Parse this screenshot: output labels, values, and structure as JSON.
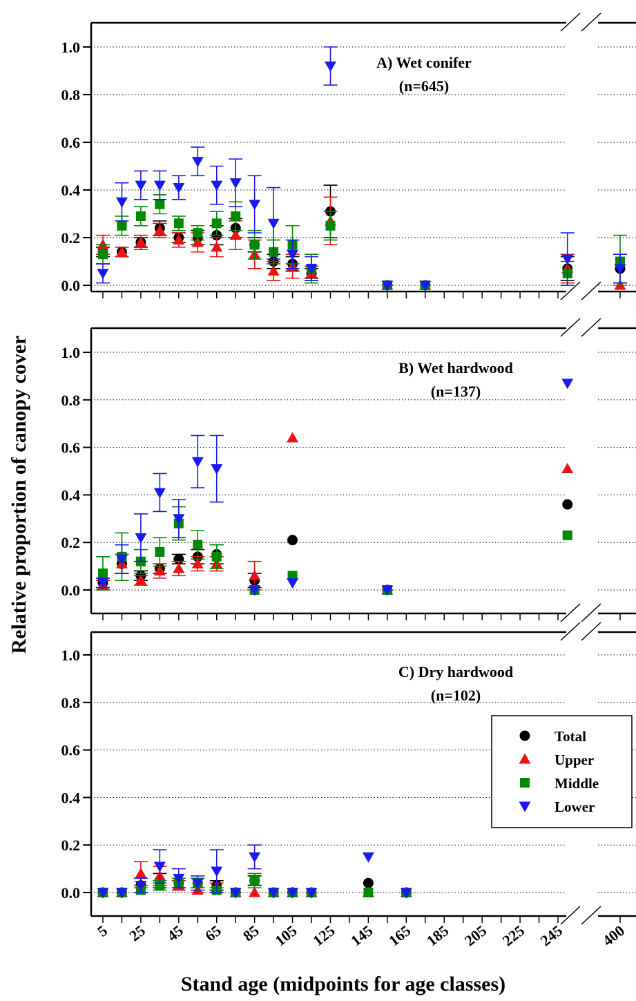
{
  "figure": {
    "ylabel": "Relative proportion of canopy cover",
    "xlabel": "Stand age (midpoints for age classes)",
    "x_ticks": [
      "5",
      "25",
      "45",
      "65",
      "85",
      "105",
      "125",
      "145",
      "165",
      "185",
      "205",
      "225",
      "245",
      "400"
    ],
    "y_ticks": [
      "0.0",
      "0.2",
      "0.4",
      "0.6",
      "0.8",
      "1.0"
    ],
    "legend": [
      {
        "label": "Total",
        "color": "#000000",
        "marker": "circle"
      },
      {
        "label": "Upper",
        "color": "#ee1111",
        "marker": "triangle-up"
      },
      {
        "label": "Middle",
        "color": "#008800",
        "marker": "square"
      },
      {
        "label": "Lower",
        "color": "#1a1aee",
        "marker": "triangle-down"
      }
    ]
  },
  "chart_data": [
    {
      "type": "scatter",
      "title": "A) Wet conifer",
      "subtitle": "(n=645)",
      "ylim": [
        -0.08,
        1.1
      ],
      "grid": "horizontal dotted",
      "x_axis_break": "between 245 and 400",
      "series": [
        {
          "name": "Total",
          "points": [
            {
              "x": 5,
              "y": 0.14,
              "err": 0.02
            },
            {
              "x": 15,
              "y": 0.14,
              "err": 0.02
            },
            {
              "x": 25,
              "y": 0.18,
              "err": 0.02
            },
            {
              "x": 35,
              "y": 0.24,
              "err": 0.03
            },
            {
              "x": 45,
              "y": 0.2,
              "err": 0.02
            },
            {
              "x": 55,
              "y": 0.2,
              "err": 0.03
            },
            {
              "x": 65,
              "y": 0.21,
              "err": 0.04
            },
            {
              "x": 75,
              "y": 0.24,
              "err": 0.04
            },
            {
              "x": 85,
              "y": 0.17,
              "err": 0.03
            },
            {
              "x": 95,
              "y": 0.1,
              "err": 0.03
            },
            {
              "x": 105,
              "y": 0.09,
              "err": 0.03
            },
            {
              "x": 115,
              "y": 0.05,
              "err": 0.02
            },
            {
              "x": 125,
              "y": 0.31,
              "err": 0.11
            },
            {
              "x": 155,
              "y": 0.0,
              "err": 0
            },
            {
              "x": 175,
              "y": 0.0,
              "err": 0
            },
            {
              "x": 250,
              "y": 0.07,
              "err": 0.05
            },
            {
              "x": 400,
              "y": 0.07,
              "err": 0.06
            }
          ]
        },
        {
          "name": "Upper",
          "points": [
            {
              "x": 5,
              "y": 0.17,
              "err": 0.04
            },
            {
              "x": 15,
              "y": 0.14,
              "err": 0.02
            },
            {
              "x": 25,
              "y": 0.18,
              "err": 0.03
            },
            {
              "x": 35,
              "y": 0.23,
              "err": 0.03
            },
            {
              "x": 45,
              "y": 0.19,
              "err": 0.03
            },
            {
              "x": 55,
              "y": 0.18,
              "err": 0.04
            },
            {
              "x": 65,
              "y": 0.16,
              "err": 0.04
            },
            {
              "x": 75,
              "y": 0.21,
              "err": 0.06
            },
            {
              "x": 85,
              "y": 0.13,
              "err": 0.06
            },
            {
              "x": 95,
              "y": 0.06,
              "err": 0.04
            },
            {
              "x": 105,
              "y": 0.08,
              "err": 0.05
            },
            {
              "x": 115,
              "y": 0.05,
              "err": 0.03
            },
            {
              "x": 125,
              "y": 0.27,
              "err": 0.1
            },
            {
              "x": 155,
              "y": 0.0,
              "err": 0
            },
            {
              "x": 175,
              "y": 0.0,
              "err": 0
            },
            {
              "x": 250,
              "y": 0.07,
              "err": 0.06
            },
            {
              "x": 400,
              "y": 0.0,
              "err": 0
            }
          ]
        },
        {
          "name": "Middle",
          "points": [
            {
              "x": 5,
              "y": 0.13,
              "err": 0.04
            },
            {
              "x": 15,
              "y": 0.25,
              "err": 0.04
            },
            {
              "x": 25,
              "y": 0.29,
              "err": 0.04
            },
            {
              "x": 35,
              "y": 0.34,
              "err": 0.04
            },
            {
              "x": 45,
              "y": 0.26,
              "err": 0.03
            },
            {
              "x": 55,
              "y": 0.22,
              "err": 0.03
            },
            {
              "x": 65,
              "y": 0.26,
              "err": 0.05
            },
            {
              "x": 75,
              "y": 0.29,
              "err": 0.06
            },
            {
              "x": 85,
              "y": 0.17,
              "err": 0.06
            },
            {
              "x": 95,
              "y": 0.14,
              "err": 0.05
            },
            {
              "x": 105,
              "y": 0.17,
              "err": 0.08
            },
            {
              "x": 115,
              "y": 0.07,
              "err": 0.06
            },
            {
              "x": 125,
              "y": 0.25,
              "err": 0.06
            },
            {
              "x": 155,
              "y": 0.0,
              "err": 0
            },
            {
              "x": 175,
              "y": 0.0,
              "err": 0
            },
            {
              "x": 250,
              "y": 0.05,
              "err": 0.05
            },
            {
              "x": 400,
              "y": 0.1,
              "err": 0.11
            }
          ]
        },
        {
          "name": "Lower",
          "points": [
            {
              "x": 5,
              "y": 0.05,
              "err": 0.04
            },
            {
              "x": 15,
              "y": 0.35,
              "err": 0.08
            },
            {
              "x": 25,
              "y": 0.42,
              "err": 0.06
            },
            {
              "x": 35,
              "y": 0.42,
              "err": 0.06
            },
            {
              "x": 45,
              "y": 0.41,
              "err": 0.05
            },
            {
              "x": 55,
              "y": 0.52,
              "err": 0.06
            },
            {
              "x": 65,
              "y": 0.42,
              "err": 0.08
            },
            {
              "x": 75,
              "y": 0.43,
              "err": 0.1
            },
            {
              "x": 85,
              "y": 0.34,
              "err": 0.12
            },
            {
              "x": 95,
              "y": 0.26,
              "err": 0.15
            },
            {
              "x": 105,
              "y": 0.13,
              "err": 0.06
            },
            {
              "x": 115,
              "y": 0.07,
              "err": 0.05
            },
            {
              "x": 125,
              "y": 0.92,
              "err": 0.08
            },
            {
              "x": 155,
              "y": 0.0,
              "err": 0
            },
            {
              "x": 175,
              "y": 0.0,
              "err": 0
            },
            {
              "x": 250,
              "y": 0.11,
              "err": 0.11
            },
            {
              "x": 400,
              "y": 0.07,
              "err": 0.06
            }
          ]
        }
      ]
    },
    {
      "type": "scatter",
      "title": "B) Wet hardwood",
      "subtitle": "(n=137)",
      "ylim": [
        -0.08,
        1.1
      ],
      "grid": "horizontal dotted",
      "x_axis_break": "between 245 and 400",
      "series": [
        {
          "name": "Total",
          "points": [
            {
              "x": 5,
              "y": 0.03,
              "err": 0.02
            },
            {
              "x": 15,
              "y": 0.11,
              "err": 0.04
            },
            {
              "x": 25,
              "y": 0.06,
              "err": 0.02
            },
            {
              "x": 35,
              "y": 0.09,
              "err": 0.02
            },
            {
              "x": 45,
              "y": 0.13,
              "err": 0.02
            },
            {
              "x": 55,
              "y": 0.14,
              "err": 0.03
            },
            {
              "x": 65,
              "y": 0.15,
              "err": 0.04
            },
            {
              "x": 85,
              "y": 0.04,
              "err": 0.03
            },
            {
              "x": 105,
              "y": 0.21,
              "err": 0
            },
            {
              "x": 155,
              "y": 0.0,
              "err": 0
            },
            {
              "x": 250,
              "y": 0.36,
              "err": 0
            }
          ]
        },
        {
          "name": "Upper",
          "points": [
            {
              "x": 5,
              "y": 0.02,
              "err": 0.02
            },
            {
              "x": 15,
              "y": 0.11,
              "err": 0.04
            },
            {
              "x": 25,
              "y": 0.04,
              "err": 0.02
            },
            {
              "x": 35,
              "y": 0.08,
              "err": 0.03
            },
            {
              "x": 45,
              "y": 0.09,
              "err": 0.03
            },
            {
              "x": 55,
              "y": 0.11,
              "err": 0.03
            },
            {
              "x": 65,
              "y": 0.11,
              "err": 0.03
            },
            {
              "x": 85,
              "y": 0.06,
              "err": 0.06
            },
            {
              "x": 105,
              "y": 0.64,
              "err": 0
            },
            {
              "x": 155,
              "y": 0.0,
              "err": 0
            },
            {
              "x": 250,
              "y": 0.51,
              "err": 0
            }
          ]
        },
        {
          "name": "Middle",
          "points": [
            {
              "x": 5,
              "y": 0.07,
              "err": 0.07
            },
            {
              "x": 15,
              "y": 0.14,
              "err": 0.1
            },
            {
              "x": 25,
              "y": 0.12,
              "err": 0.05
            },
            {
              "x": 35,
              "y": 0.16,
              "err": 0.06
            },
            {
              "x": 45,
              "y": 0.28,
              "err": 0.07
            },
            {
              "x": 55,
              "y": 0.19,
              "err": 0.06
            },
            {
              "x": 65,
              "y": 0.14,
              "err": 0.05
            },
            {
              "x": 85,
              "y": 0.0,
              "err": 0
            },
            {
              "x": 105,
              "y": 0.06,
              "err": 0
            },
            {
              "x": 155,
              "y": 0.0,
              "err": 0
            },
            {
              "x": 250,
              "y": 0.23,
              "err": 0
            }
          ]
        },
        {
          "name": "Lower",
          "points": [
            {
              "x": 5,
              "y": 0.03,
              "err": 0.02
            },
            {
              "x": 15,
              "y": 0.13,
              "err": 0.06
            },
            {
              "x": 25,
              "y": 0.22,
              "err": 0.1
            },
            {
              "x": 35,
              "y": 0.41,
              "err": 0.08
            },
            {
              "x": 45,
              "y": 0.3,
              "err": 0.08
            },
            {
              "x": 55,
              "y": 0.54,
              "err": 0.11
            },
            {
              "x": 65,
              "y": 0.51,
              "err": 0.14
            },
            {
              "x": 85,
              "y": 0.0,
              "err": 0
            },
            {
              "x": 105,
              "y": 0.03,
              "err": 0
            },
            {
              "x": 155,
              "y": 0.0,
              "err": 0
            },
            {
              "x": 250,
              "y": 0.87,
              "err": 0
            }
          ]
        }
      ]
    },
    {
      "type": "scatter",
      "title": "C) Dry hardwood",
      "subtitle": "(n=102)",
      "ylim": [
        -0.08,
        1.1
      ],
      "grid": "horizontal dotted",
      "x_axis_break": "between 245 and 400",
      "legend_position": "right",
      "series": [
        {
          "name": "Total",
          "points": [
            {
              "x": 5,
              "y": 0.0,
              "err": 0
            },
            {
              "x": 15,
              "y": 0.0,
              "err": 0
            },
            {
              "x": 25,
              "y": 0.03,
              "err": 0.03
            },
            {
              "x": 35,
              "y": 0.05,
              "err": 0.03
            },
            {
              "x": 45,
              "y": 0.04,
              "err": 0.02
            },
            {
              "x": 55,
              "y": 0.04,
              "err": 0.02
            },
            {
              "x": 65,
              "y": 0.03,
              "err": 0.02
            },
            {
              "x": 75,
              "y": 0.0,
              "err": 0
            },
            {
              "x": 85,
              "y": 0.05,
              "err": 0.02
            },
            {
              "x": 95,
              "y": 0.0,
              "err": 0
            },
            {
              "x": 105,
              "y": 0.0,
              "err": 0
            },
            {
              "x": 115,
              "y": 0.0,
              "err": 0
            },
            {
              "x": 145,
              "y": 0.04,
              "err": 0
            },
            {
              "x": 165,
              "y": 0.0,
              "err": 0
            }
          ]
        },
        {
          "name": "Upper",
          "points": [
            {
              "x": 5,
              "y": 0.0,
              "err": 0
            },
            {
              "x": 15,
              "y": 0.0,
              "err": 0
            },
            {
              "x": 25,
              "y": 0.08,
              "err": 0.05
            },
            {
              "x": 35,
              "y": 0.07,
              "err": 0.04
            },
            {
              "x": 45,
              "y": 0.03,
              "err": 0.02
            },
            {
              "x": 55,
              "y": 0.01,
              "err": 0.01
            },
            {
              "x": 65,
              "y": 0.02,
              "err": 0.02
            },
            {
              "x": 75,
              "y": 0.0,
              "err": 0
            },
            {
              "x": 85,
              "y": 0.0,
              "err": 0
            },
            {
              "x": 95,
              "y": 0.0,
              "err": 0
            },
            {
              "x": 105,
              "y": 0.0,
              "err": 0
            },
            {
              "x": 115,
              "y": 0.0,
              "err": 0
            },
            {
              "x": 145,
              "y": 0.0,
              "err": 0
            },
            {
              "x": 165,
              "y": 0.0,
              "err": 0
            }
          ]
        },
        {
          "name": "Middle",
          "points": [
            {
              "x": 5,
              "y": 0.0,
              "err": 0
            },
            {
              "x": 15,
              "y": 0.0,
              "err": 0
            },
            {
              "x": 25,
              "y": 0.01,
              "err": 0.01
            },
            {
              "x": 35,
              "y": 0.03,
              "err": 0.02
            },
            {
              "x": 45,
              "y": 0.04,
              "err": 0.02
            },
            {
              "x": 55,
              "y": 0.04,
              "err": 0.02
            },
            {
              "x": 65,
              "y": 0.01,
              "err": 0.01
            },
            {
              "x": 75,
              "y": 0.0,
              "err": 0
            },
            {
              "x": 85,
              "y": 0.05,
              "err": 0.03
            },
            {
              "x": 95,
              "y": 0.0,
              "err": 0
            },
            {
              "x": 105,
              "y": 0.0,
              "err": 0
            },
            {
              "x": 115,
              "y": 0.0,
              "err": 0
            },
            {
              "x": 145,
              "y": 0.0,
              "err": 0
            },
            {
              "x": 165,
              "y": 0.0,
              "err": 0
            }
          ]
        },
        {
          "name": "Lower",
          "points": [
            {
              "x": 5,
              "y": 0.0,
              "err": 0
            },
            {
              "x": 15,
              "y": 0.0,
              "err": 0
            },
            {
              "x": 25,
              "y": 0.03,
              "err": 0.03
            },
            {
              "x": 35,
              "y": 0.11,
              "err": 0.07
            },
            {
              "x": 45,
              "y": 0.06,
              "err": 0.04
            },
            {
              "x": 55,
              "y": 0.04,
              "err": 0.03
            },
            {
              "x": 65,
              "y": 0.09,
              "err": 0.09
            },
            {
              "x": 75,
              "y": 0.0,
              "err": 0
            },
            {
              "x": 85,
              "y": 0.15,
              "err": 0.05
            },
            {
              "x": 95,
              "y": 0.0,
              "err": 0
            },
            {
              "x": 105,
              "y": 0.0,
              "err": 0
            },
            {
              "x": 115,
              "y": 0.0,
              "err": 0
            },
            {
              "x": 145,
              "y": 0.15,
              "err": 0
            },
            {
              "x": 165,
              "y": 0.0,
              "err": 0
            }
          ]
        }
      ]
    }
  ]
}
